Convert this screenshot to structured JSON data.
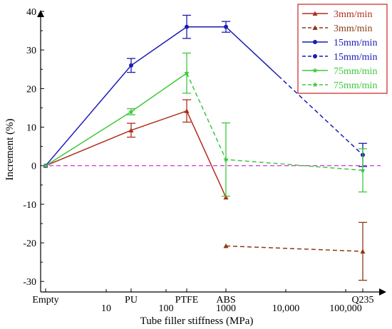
{
  "chart_data": {
    "type": "line",
    "xlabel": "Tube filler stiffness (MPa)",
    "ylabel": "Increment (%)",
    "ylim": [
      -32,
      40
    ],
    "y_ticks": [
      -30,
      -20,
      -10,
      0,
      10,
      20,
      30,
      40
    ],
    "x_axis_scale": "log (stiffness), with an extra 'Empty' category at far left",
    "x_category_labels": [
      "Empty",
      "PU",
      "PTFE",
      "ABS",
      "Q235"
    ],
    "x_stiffness_labels": [
      "10",
      "100",
      "1000",
      "10,000",
      "100,000"
    ],
    "grid": false,
    "legend_position": "top-right",
    "legend": [
      {
        "label": "3mm/min",
        "color": "#b22c1c",
        "style": "solid",
        "marker": "triangle"
      },
      {
        "label": "3mm/min",
        "color": "#8b3a16",
        "style": "dashed",
        "marker": "triangle"
      },
      {
        "label": "15mm/min",
        "color": "#1a1ab5",
        "style": "solid",
        "marker": "circle"
      },
      {
        "label": "15mm/min",
        "color": "#1a1ab5",
        "style": "dashed",
        "marker": "circle"
      },
      {
        "label": "75mm/min",
        "color": "#3cc83c",
        "style": "solid",
        "marker": "star"
      },
      {
        "label": "75mm/min",
        "color": "#3cc83c",
        "style": "dashed",
        "marker": "star"
      }
    ],
    "series": [
      {
        "color": "#b22c1c",
        "style": "solid",
        "marker": "triangle",
        "points": [
          {
            "category": "Empty",
            "y": 0
          },
          {
            "category": "PU",
            "y": 9.2,
            "err": 1.8
          },
          {
            "category": "PTFE",
            "y": 14.2,
            "err": 2.9
          },
          {
            "category": "ABS",
            "y": -8.2
          }
        ]
      },
      {
        "color": "#8b3a16",
        "style": "dashed",
        "marker": "triangle",
        "points": [
          {
            "category": "ABS",
            "y": -20.8
          },
          {
            "category": "Q235",
            "y": -22.2,
            "err": 7.5
          }
        ]
      },
      {
        "color": "#1a1ab5",
        "style": "solid",
        "marker": "circle",
        "points": [
          {
            "category": "Empty",
            "y": 0
          },
          {
            "category": "PU",
            "y": 26.0,
            "err": 1.8
          },
          {
            "category": "PTFE",
            "y": 36.0,
            "err": 3.0
          },
          {
            "category": "ABS",
            "y": 36.0,
            "err": 1.4
          },
          {
            "stiffness": 7500,
            "y": 23.3
          }
        ]
      },
      {
        "color": "#1a1ab5",
        "style": "dashed",
        "marker": "circle",
        "points": [
          {
            "stiffness": 7500,
            "y": 23.3
          },
          {
            "category": "Q235",
            "y": 2.8,
            "err": 3.0
          }
        ]
      },
      {
        "color": "#3cc83c",
        "style": "solid",
        "marker": "star",
        "points": [
          {
            "category": "Empty",
            "y": 0
          },
          {
            "category": "PU",
            "y": 14.0,
            "err": 0.8
          },
          {
            "category": "PTFE",
            "y": 24.0,
            "err": 5.2
          }
        ]
      },
      {
        "color": "#3cc83c",
        "style": "dashed",
        "marker": "star",
        "points": [
          {
            "category": "PTFE",
            "y": 24.0
          },
          {
            "category": "ABS",
            "y": 1.6,
            "err": 9.5
          },
          {
            "category": "Q235",
            "y": -1.2,
            "err": 5.6
          }
        ]
      }
    ],
    "reference_line": {
      "y": 0,
      "color": "#d020d0",
      "style": "dashed"
    }
  }
}
